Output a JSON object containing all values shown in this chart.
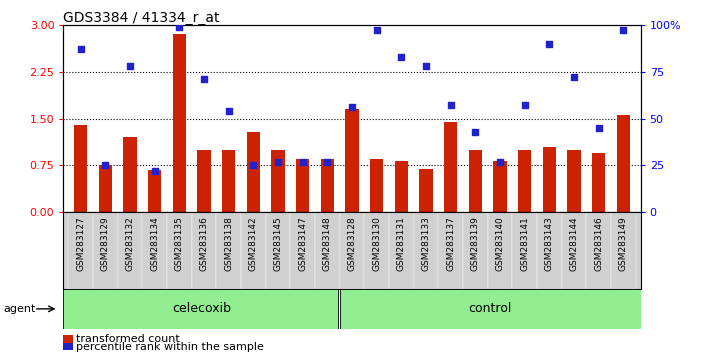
{
  "title": "GDS3384 / 41334_r_at",
  "categories": [
    "GSM283127",
    "GSM283129",
    "GSM283132",
    "GSM283134",
    "GSM283135",
    "GSM283136",
    "GSM283138",
    "GSM283142",
    "GSM283145",
    "GSM283147",
    "GSM283148",
    "GSM283128",
    "GSM283130",
    "GSM283131",
    "GSM283133",
    "GSM283137",
    "GSM283139",
    "GSM283140",
    "GSM283141",
    "GSM283143",
    "GSM283144",
    "GSM283146",
    "GSM283149"
  ],
  "bar_values": [
    1.4,
    0.75,
    1.2,
    0.68,
    2.85,
    1.0,
    1.0,
    1.28,
    1.0,
    0.85,
    0.85,
    1.65,
    0.85,
    0.82,
    0.7,
    1.45,
    1.0,
    0.82,
    1.0,
    1.05,
    1.0,
    0.95,
    1.55
  ],
  "scatter_pct": [
    87,
    25,
    78,
    22,
    99,
    71,
    54,
    25,
    27,
    27,
    27,
    56,
    97,
    83,
    78,
    57,
    43,
    27,
    57,
    90,
    72,
    45,
    97
  ],
  "celecoxib_count": 11,
  "control_count": 12,
  "bar_color": "#cc2200",
  "scatter_color": "#2222cc",
  "left_ylim": [
    0,
    3.0
  ],
  "left_yticks": [
    0,
    0.75,
    1.5,
    2.25,
    3.0
  ],
  "right_ylim": [
    0,
    100
  ],
  "right_yticks": [
    0,
    25,
    50,
    75,
    100
  ],
  "dotted_lines": [
    0.75,
    1.5,
    2.25
  ],
  "group1_label": "celecoxib",
  "group2_label": "control",
  "legend_bar_label": "transformed count",
  "legend_scatter_label": "percentile rank within the sample",
  "agent_text": "agent",
  "xtick_bg": "#d0d0d0",
  "agent_bg": "#90ee90"
}
